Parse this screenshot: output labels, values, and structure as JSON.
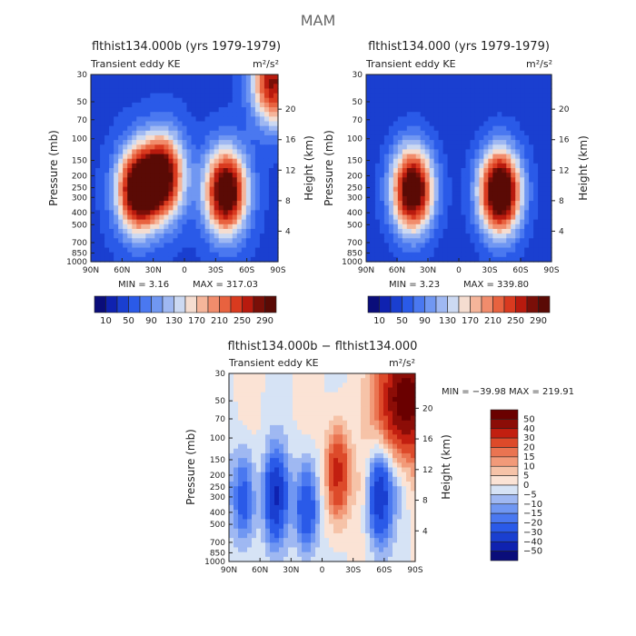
{
  "page": {
    "title": "MAM"
  },
  "chart_data": [
    {
      "type": "heatmap",
      "title": "flthist134.000b (yrs 1979-1979)",
      "subtitle_left": "Transient eddy KE",
      "units": "m²/s²",
      "ylabel": "Pressure (mb)",
      "ylabel_right": "Height (km)",
      "x_tick_labels": [
        "90N",
        "60N",
        "30N",
        "0",
        "30S",
        "60S",
        "90S"
      ],
      "y_tick_labels": [
        "30",
        "50",
        "70",
        "100",
        "150",
        "200",
        "250",
        "300",
        "400",
        "500",
        "700",
        "850",
        "1000"
      ],
      "y_right_tick_labels": [
        "20",
        "16",
        "12",
        "8",
        "4"
      ],
      "min_text": "MIN =    3.16",
      "max_text": "MAX = 317.03",
      "min": 3.16,
      "max": 317.03,
      "colorbar_labels": [
        "10",
        "50",
        "90",
        "130",
        "170",
        "210",
        "250",
        "290"
      ],
      "colorbar_levels": [
        10,
        30,
        50,
        70,
        90,
        110,
        130,
        150,
        170,
        190,
        210,
        230,
        250,
        270,
        290
      ],
      "features": [
        {
          "lat": -40,
          "p": 270,
          "value": 300
        },
        {
          "lat": 45,
          "p": 260,
          "value": 290
        },
        {
          "lat": 20,
          "p": 200,
          "value": 260
        },
        {
          "lat": -85,
          "p": 35,
          "value": 230
        }
      ]
    },
    {
      "type": "heatmap",
      "title": "flthist134.000 (yrs 1979-1979)",
      "subtitle_left": "Transient eddy KE",
      "units": "m²/s²",
      "ylabel": "Pressure (mb)",
      "ylabel_right": "Height (km)",
      "x_tick_labels": [
        "90N",
        "60N",
        "30N",
        "0",
        "30S",
        "60S",
        "90S"
      ],
      "y_tick_labels": [
        "30",
        "50",
        "70",
        "100",
        "150",
        "200",
        "250",
        "300",
        "400",
        "500",
        "700",
        "850",
        "1000"
      ],
      "y_right_tick_labels": [
        "20",
        "16",
        "12",
        "8",
        "4"
      ],
      "min_text": "MIN =    3.23",
      "max_text": "MAX = 339.80",
      "min": 3.23,
      "max": 339.8,
      "colorbar_labels": [
        "10",
        "50",
        "90",
        "130",
        "170",
        "210",
        "250",
        "290"
      ],
      "colorbar_levels": [
        10,
        30,
        50,
        70,
        90,
        110,
        130,
        150,
        170,
        190,
        210,
        230,
        250,
        270,
        290
      ],
      "features": [
        {
          "lat": -40,
          "p": 270,
          "value": 330
        },
        {
          "lat": 45,
          "p": 260,
          "value": 300
        }
      ]
    },
    {
      "type": "heatmap",
      "title": "flthist134.000b − flthist134.000",
      "subtitle_left": "Transient eddy KE",
      "units": "m²/s²",
      "ylabel": "Pressure (mb)",
      "ylabel_right": "Height (km)",
      "x_tick_labels": [
        "90N",
        "60N",
        "30N",
        "0",
        "30S",
        "60S",
        "90S"
      ],
      "y_tick_labels": [
        "30",
        "50",
        "70",
        "100",
        "150",
        "200",
        "250",
        "300",
        "400",
        "500",
        "700",
        "850",
        "1000"
      ],
      "y_right_tick_labels": [
        "20",
        "16",
        "12",
        "8",
        "4"
      ],
      "minmax_text": "MIN = −39.98   MAX = 219.91",
      "min": -39.98,
      "max": 219.91,
      "colorbar_labels": [
        "50",
        "40",
        "30",
        "20",
        "15",
        "10",
        "5",
        "0",
        "−5",
        "−10",
        "−15",
        "−20",
        "−30",
        "−40",
        "−50"
      ],
      "colorbar_levels": [
        -50,
        -40,
        -30,
        -20,
        -15,
        -10,
        -5,
        0,
        5,
        10,
        15,
        20,
        30,
        40,
        50
      ],
      "features": [
        {
          "lat": -80,
          "p": 50,
          "value": 60
        },
        {
          "lat": -55,
          "p": 300,
          "value": -40
        },
        {
          "lat": -15,
          "p": 200,
          "value": 40
        },
        {
          "lat": 15,
          "p": 350,
          "value": -35
        },
        {
          "lat": 45,
          "p": 300,
          "value": -35
        },
        {
          "lat": 75,
          "p": 300,
          "value": -30
        }
      ]
    }
  ],
  "colors": {
    "kescale": [
      "#0a0d7a",
      "#0f22b0",
      "#1a3fd0",
      "#2a5ae8",
      "#4a78f0",
      "#7097f2",
      "#9fb8f2",
      "#ccd9f2",
      "#f5ddd0",
      "#f5b59a",
      "#f18c6c",
      "#e8623f",
      "#d93a1f",
      "#b81a0e",
      "#7a0f08",
      "#5a0a05"
    ],
    "diffscale": [
      "#0a0d7a",
      "#0f22b0",
      "#1a3fd0",
      "#2a5ae8",
      "#4a78f0",
      "#7097f2",
      "#9fb8f2",
      "#d6e3f5",
      "#fbe3d5",
      "#f6c3a8",
      "#f29a79",
      "#ea7451",
      "#dd4a2a",
      "#c21f10",
      "#8c0d07",
      "#6a0000"
    ]
  }
}
